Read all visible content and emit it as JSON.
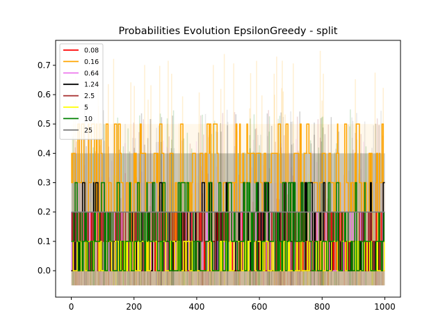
{
  "chart_data": {
    "type": "line",
    "title": "Probabilities Evolution EpsilonGreedy  - split",
    "xlabel": "",
    "ylabel": "",
    "xlim": [
      -50,
      1050
    ],
    "ylim": [
      -0.09,
      0.785
    ],
    "xticks": [
      0,
      200,
      400,
      600,
      800,
      1000
    ],
    "xtick_labels": [
      "0",
      "200",
      "400",
      "600",
      "800",
      "1000"
    ],
    "yticks": [
      0.0,
      0.1,
      0.2,
      0.3,
      0.4,
      0.5,
      0.6,
      0.7
    ],
    "ytick_labels": [
      "0.0",
      "0.1",
      "0.2",
      "0.3",
      "0.4",
      "0.5",
      "0.6",
      "0.7"
    ],
    "grid": false,
    "legend_position": "top-left",
    "series": [
      {
        "name": "0.08",
        "color": "#ff0000",
        "levels": [
          0.0,
          0.1,
          0.2
        ],
        "weights": [
          0.45,
          0.4,
          0.15
        ],
        "band": [
          -0.05,
          0.2
        ]
      },
      {
        "name": "0.16",
        "color": "#ffa500",
        "levels": [
          0.1,
          0.2,
          0.3,
          0.4,
          0.5
        ],
        "weights": [
          0.1,
          0.2,
          0.4,
          0.2,
          0.1
        ],
        "band": [
          -0.05,
          0.5
        ]
      },
      {
        "name": "0.64",
        "color": "#ee82ee",
        "levels": [
          0.0,
          0.1,
          0.2
        ],
        "weights": [
          0.4,
          0.4,
          0.2
        ],
        "band": [
          -0.05,
          0.3
        ]
      },
      {
        "name": "1.24",
        "color": "#000000",
        "levels": [
          0.0,
          0.1,
          0.2,
          0.3
        ],
        "weights": [
          0.35,
          0.35,
          0.2,
          0.1
        ],
        "band": [
          -0.05,
          0.4
        ]
      },
      {
        "name": "2.5",
        "color": "#a52a2a",
        "levels": [
          0.0,
          0.1,
          0.2
        ],
        "weights": [
          0.3,
          0.45,
          0.25
        ],
        "band": [
          -0.05,
          0.4
        ]
      },
      {
        "name": "5",
        "color": "#ffff00",
        "levels": [
          0.0,
          0.1
        ],
        "weights": [
          0.5,
          0.5
        ],
        "band": [
          -0.05,
          0.2
        ]
      },
      {
        "name": "10",
        "color": "#008000",
        "levels": [
          0.0,
          0.1,
          0.2,
          0.3
        ],
        "weights": [
          0.3,
          0.35,
          0.2,
          0.15
        ],
        "band": [
          -0.05,
          0.4
        ]
      },
      {
        "name": "25",
        "color": "#808080",
        "levels": [
          0.2
        ],
        "weights": [
          1.0
        ],
        "band": [
          -0.05,
          0.4
        ]
      }
    ]
  }
}
